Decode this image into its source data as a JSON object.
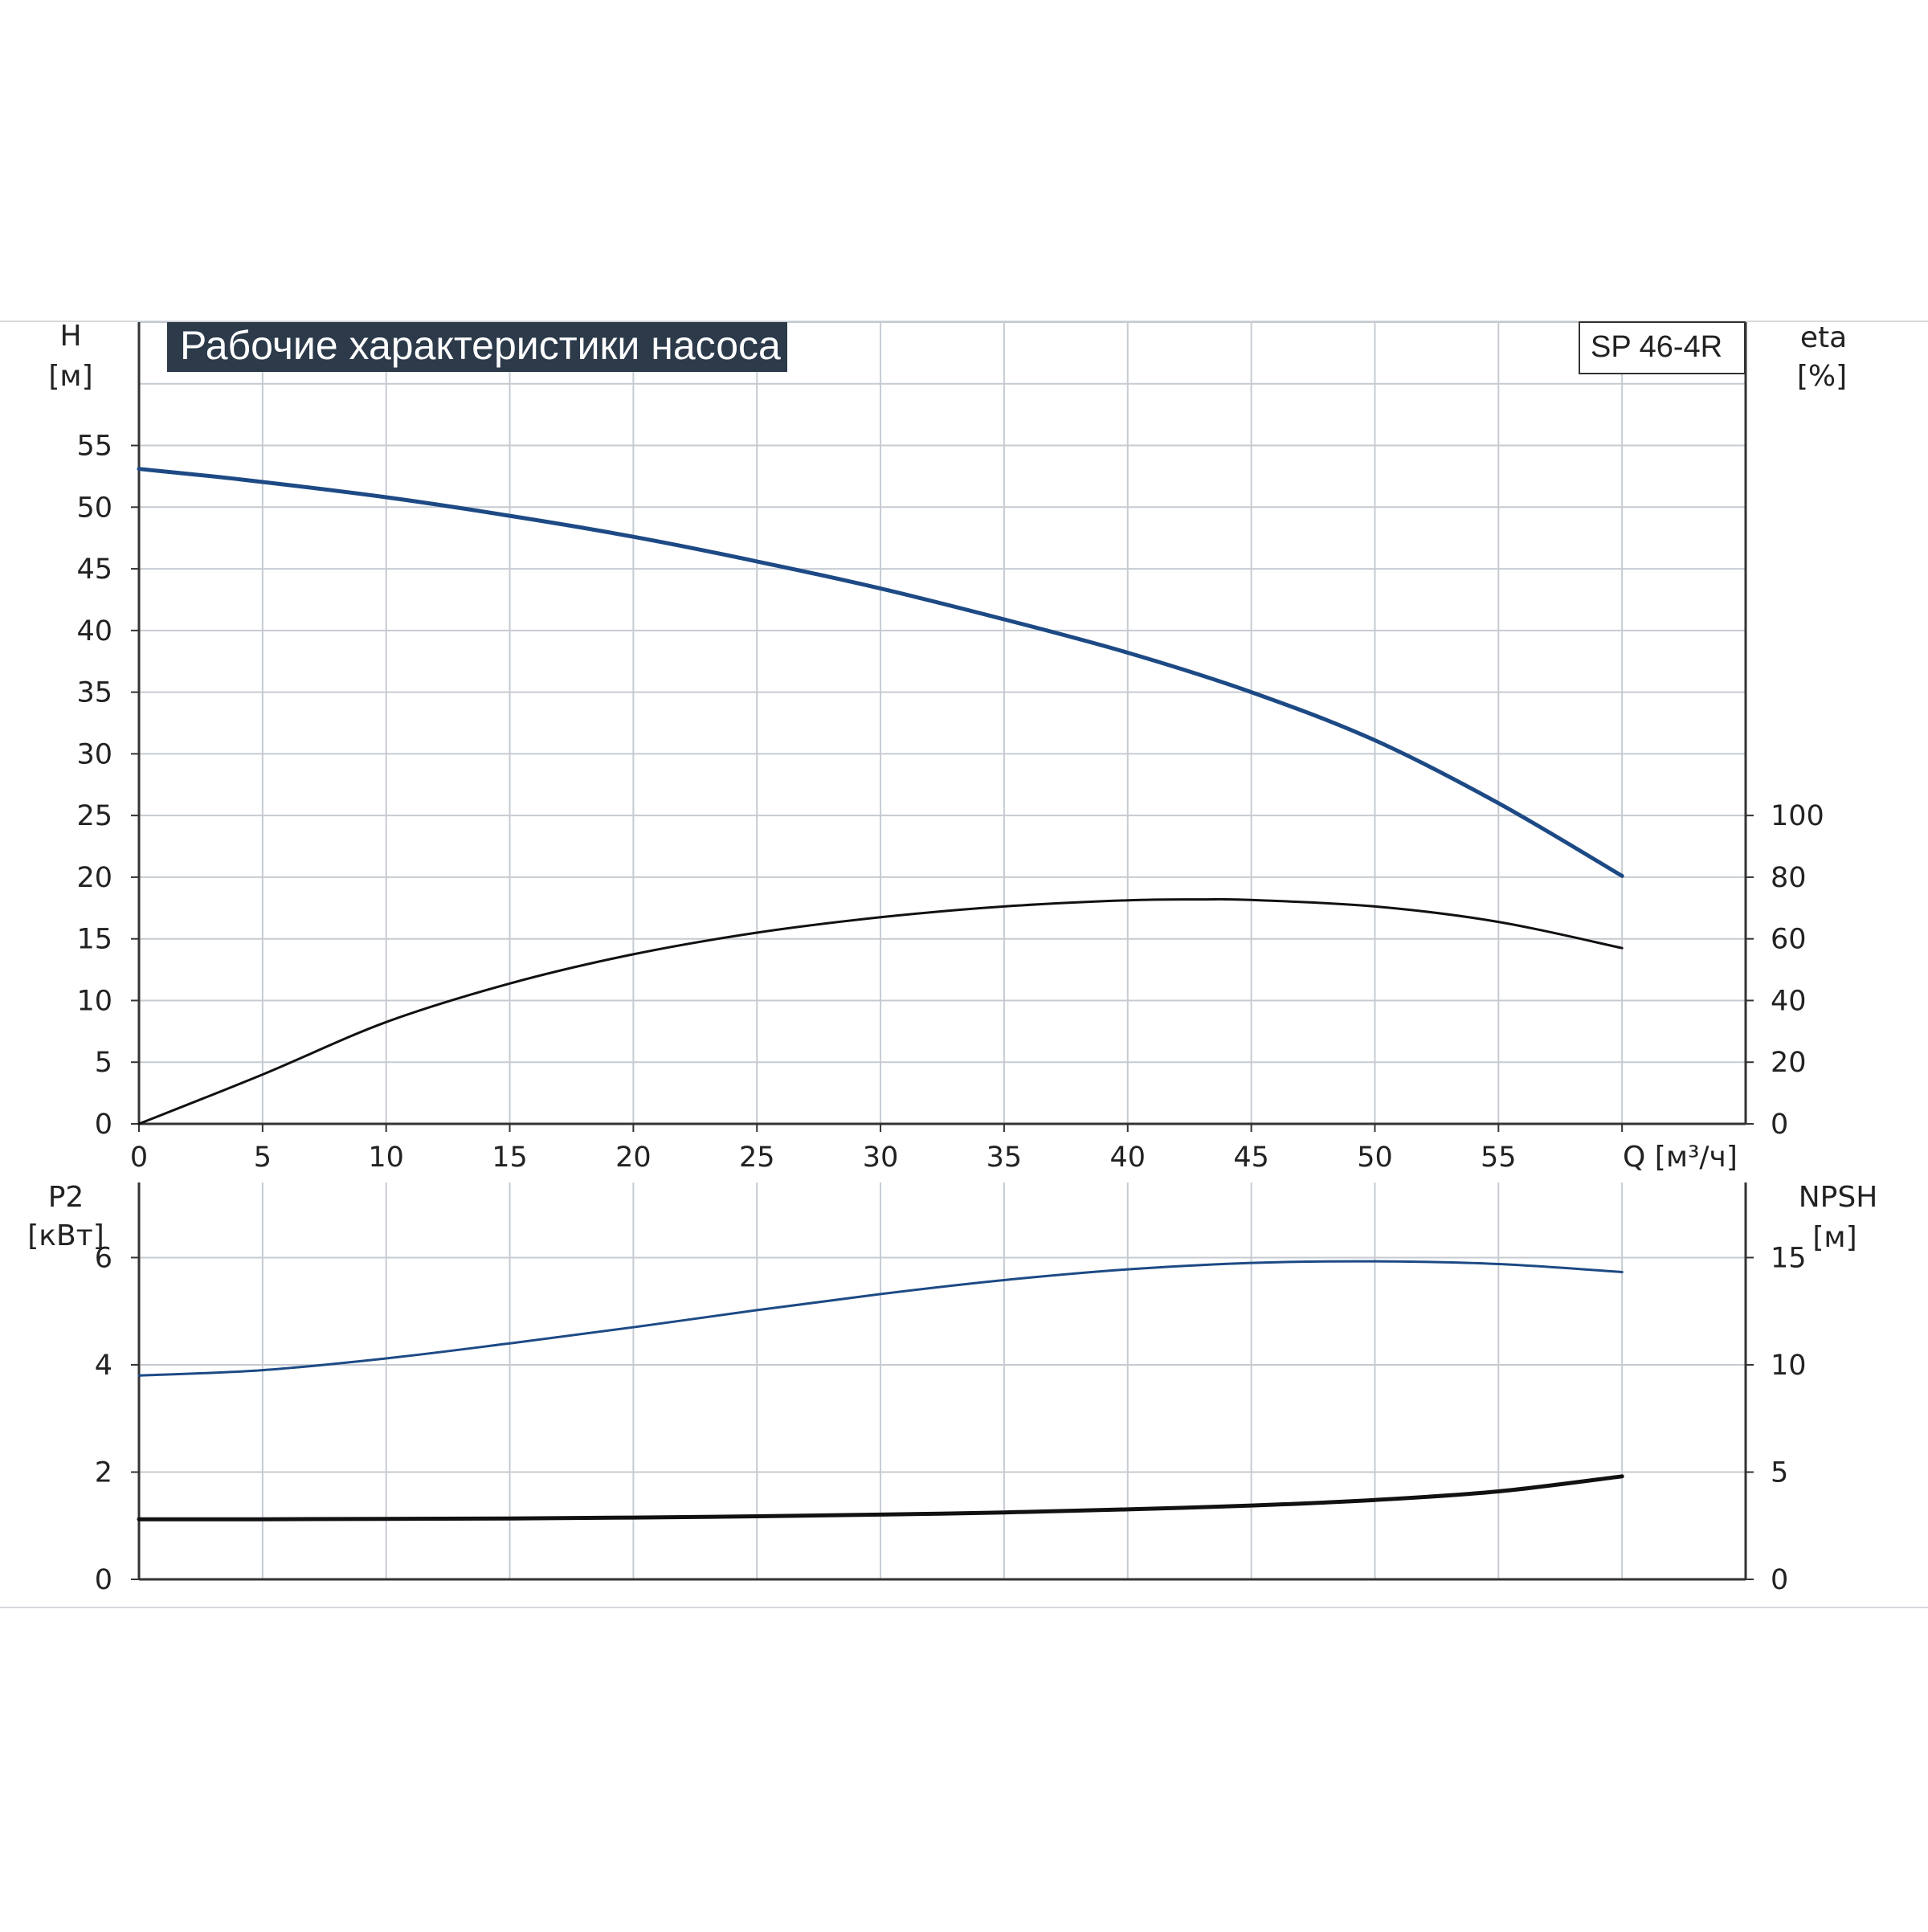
{
  "title": "Рабочие характеристики насоса",
  "model": "SP 46-4R",
  "colors": {
    "blue": "#1d4a85",
    "black": "#111111",
    "grid": "#c6cbd2",
    "title_bg": "#2c3a4a",
    "axis": "#333333"
  },
  "chart_data": [
    {
      "type": "line",
      "panel": "top",
      "x_label": "Q [м³/ч]",
      "y_left_label": [
        "H",
        "[м]"
      ],
      "y_right_label": [
        "eta",
        "[%]"
      ],
      "x_ticks": [
        "0",
        "5",
        "10",
        "15",
        "20",
        "25",
        "30",
        "35",
        "40",
        "45",
        "50",
        "55"
      ],
      "y_left_ticks": [
        "0",
        "5",
        "10",
        "15",
        "20",
        "25",
        "30",
        "35",
        "40",
        "45",
        "50",
        "55"
      ],
      "y_right_ticks": [
        "0",
        "20",
        "40",
        "60",
        "80",
        "100"
      ],
      "xlim": [
        0,
        65
      ],
      "ylim_left": [
        0,
        65
      ],
      "ylim_right": [
        0,
        260
      ],
      "grid": true,
      "series": [
        {
          "id": "H",
          "axis": "left",
          "color": "#1d4a85",
          "x": [
            0,
            4.3,
            10,
            15,
            20,
            25,
            30,
            35,
            40,
            45,
            50,
            55,
            60
          ],
          "y": [
            53.1,
            52.2,
            50.8,
            49.3,
            47.6,
            45.6,
            43.4,
            40.9,
            38.2,
            35.0,
            31.1,
            26.0,
            20.1
          ]
        },
        {
          "id": "eta",
          "axis": "right",
          "color": "#111111",
          "x": [
            0,
            5,
            10,
            15,
            20,
            25,
            30,
            35,
            40,
            43,
            45,
            50,
            55,
            60
          ],
          "y": [
            0,
            16,
            33,
            45.5,
            55,
            62,
            67,
            70.5,
            72.5,
            72.8,
            72.6,
            70.5,
            65.5,
            57
          ]
        }
      ]
    },
    {
      "type": "line",
      "panel": "bottom",
      "y_left_label": [
        "P2",
        "[кВт]"
      ],
      "y_right_label": [
        "NPSH",
        "[м]"
      ],
      "y_left_ticks": [
        "0",
        "2",
        "4",
        "6"
      ],
      "y_right_ticks": [
        "0",
        "5",
        "10",
        "15"
      ],
      "ylim_left": [
        0,
        7.4
      ],
      "ylim_right": [
        0,
        18.5
      ],
      "grid": true,
      "series": [
        {
          "id": "P2",
          "axis": "left",
          "color": "#1d4a85",
          "x": [
            0,
            5,
            10,
            15,
            20,
            25,
            30,
            35,
            40,
            45,
            50,
            55,
            60
          ],
          "y": [
            3.8,
            3.9,
            4.12,
            4.4,
            4.7,
            5.02,
            5.32,
            5.58,
            5.78,
            5.9,
            5.93,
            5.88,
            5.73
          ]
        },
        {
          "id": "NPSH",
          "axis": "right",
          "color": "#111111",
          "x": [
            0,
            5,
            10,
            15,
            20,
            25,
            30,
            35,
            40,
            45,
            50,
            55,
            60
          ],
          "y": [
            2.8,
            2.8,
            2.82,
            2.84,
            2.88,
            2.94,
            3.02,
            3.12,
            3.26,
            3.44,
            3.7,
            4.1,
            4.8
          ]
        }
      ]
    }
  ]
}
